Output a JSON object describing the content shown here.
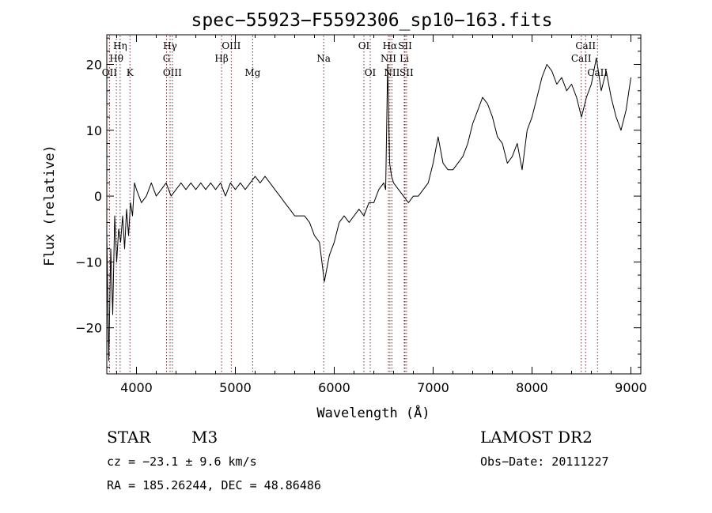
{
  "chart_data": {
    "type": "line",
    "title": "spec−55923−F5592306_sp10−163.fits",
    "xlabel": "Wavelength (Å)",
    "ylabel": "Flux (relative)",
    "xlim": [
      3700,
      9100
    ],
    "ylim": [
      -27,
      24.5
    ],
    "xticks": [
      4000,
      5000,
      6000,
      7000,
      8000,
      9000
    ],
    "xtick_labels": [
      "4000",
      "5000",
      "6000",
      "7000",
      "8000",
      "9000"
    ],
    "yticks": [
      -20,
      -10,
      0,
      10,
      20
    ],
    "ytick_labels": [
      "−20",
      "−10",
      "0",
      "10",
      "20"
    ],
    "grid": false,
    "series": [
      {
        "x": [
          3700,
          3720,
          3740,
          3760,
          3780,
          3800,
          3820,
          3840,
          3860,
          3880,
          3900,
          3920,
          3940,
          3960,
          3980,
          4000,
          4050,
          4100,
          4150,
          4200,
          4250,
          4300,
          4350,
          4400,
          4450,
          4500,
          4550,
          4600,
          4650,
          4700,
          4750,
          4800,
          4850,
          4900,
          4950,
          5000,
          5050,
          5100,
          5150,
          5200,
          5250,
          5300,
          5350,
          5400,
          5450,
          5500,
          5550,
          5600,
          5650,
          5700,
          5750,
          5800,
          5850,
          5900,
          5950,
          6000,
          6050,
          6100,
          6150,
          6200,
          6250,
          6300,
          6350,
          6400,
          6450,
          6500,
          6520,
          6540,
          6560,
          6580,
          6600,
          6650,
          6700,
          6750,
          6800,
          6850,
          6900,
          6950,
          7000,
          7050,
          7100,
          7150,
          7200,
          7250,
          7300,
          7350,
          7400,
          7450,
          7500,
          7550,
          7600,
          7650,
          7700,
          7750,
          7800,
          7850,
          7900,
          7950,
          8000,
          8050,
          8100,
          8150,
          8200,
          8250,
          8300,
          8350,
          8400,
          8450,
          8500,
          8550,
          8600,
          8650,
          8700,
          8750,
          8800,
          8850,
          8900,
          8950,
          9000
        ],
        "y": [
          -6,
          -25,
          -8,
          -18,
          -3,
          -10,
          -5,
          -7,
          -3,
          -8,
          -2,
          -6,
          -1,
          -3,
          2,
          1,
          -1,
          0,
          2,
          0,
          1,
          2,
          0,
          1,
          2,
          1,
          2,
          1,
          2,
          1,
          2,
          1,
          2,
          0,
          2,
          1,
          2,
          1,
          2,
          3,
          2,
          3,
          2,
          1,
          0,
          -1,
          -2,
          -3,
          -3,
          -3,
          -4,
          -6,
          -7,
          -13,
          -9,
          -7,
          -4,
          -3,
          -4,
          -3,
          -2,
          -3,
          -1,
          -1,
          1,
          2,
          1,
          20,
          5,
          3,
          2,
          1,
          0,
          -1,
          0,
          0,
          1,
          2,
          5,
          9,
          5,
          4,
          4,
          5,
          6,
          8,
          11,
          13,
          15,
          14,
          12,
          9,
          8,
          5,
          6,
          8,
          4,
          10,
          12,
          15,
          18,
          20,
          19,
          17,
          18,
          16,
          17,
          15,
          12,
          15,
          17,
          21,
          16,
          19,
          15,
          12,
          10,
          13,
          18
        ]
      }
    ],
    "line_labels": [
      {
        "text": "Hη",
        "x": 3835,
        "row": 1
      },
      {
        "text": "Hθ",
        "x": 3797,
        "row": 2
      },
      {
        "text": "OII",
        "x": 3727,
        "row": 3
      },
      {
        "text": "K",
        "x": 3934,
        "row": 3
      },
      {
        "text": "Hγ",
        "x": 4340,
        "row": 1
      },
      {
        "text": "G",
        "x": 4304,
        "row": 2
      },
      {
        "text": "OIII",
        "x": 4363,
        "row": 3
      },
      {
        "text": "OIII",
        "x": 4959,
        "row": 1
      },
      {
        "text": "Hβ",
        "x": 4861,
        "row": 2
      },
      {
        "text": "Mg",
        "x": 5175,
        "row": 3
      },
      {
        "text": "Na",
        "x": 5893,
        "row": 2
      },
      {
        "text": "OI",
        "x": 6300,
        "row": 1
      },
      {
        "text": "OI",
        "x": 6364,
        "row": 3
      },
      {
        "text": "Hα",
        "x": 6563,
        "row": 1
      },
      {
        "text": "SII",
        "x": 6716,
        "row": 1
      },
      {
        "text": "NII",
        "x": 6548,
        "row": 2
      },
      {
        "text": "Li",
        "x": 6708,
        "row": 2
      },
      {
        "text": "NII",
        "x": 6583,
        "row": 3
      },
      {
        "text": "SII",
        "x": 6731,
        "row": 3
      },
      {
        "text": "CaII",
        "x": 8542,
        "row": 1
      },
      {
        "text": "CaII",
        "x": 8498,
        "row": 2
      },
      {
        "text": "CaII",
        "x": 8662,
        "row": 3
      }
    ],
    "line_markers": [
      3727,
      3797,
      3835,
      3934,
      4304,
      4340,
      4363,
      4861,
      4959,
      5175,
      5893,
      6300,
      6364,
      6548,
      6563,
      6583,
      6708,
      6716,
      6731,
      8498,
      8542,
      8662
    ],
    "marker_color": "#9b1c1c"
  },
  "info": {
    "object_type": "STAR",
    "subclass": "M3",
    "survey": "LAMOST DR2",
    "cz": "cz = −23.1 ± 9.6 km/s",
    "obs_date": "Obs−Date: 20111227",
    "coords": "RA = 185.26244, DEC =  48.86486"
  }
}
